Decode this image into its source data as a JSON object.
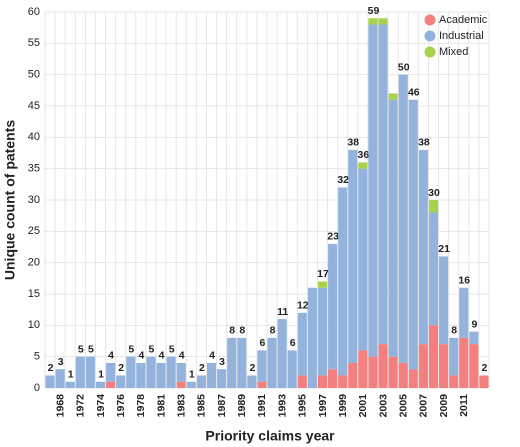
{
  "chart_data": {
    "type": "stacked_bar",
    "x_label": "Priority claims year",
    "y_label": "Unique count of patents",
    "categories": [
      null,
      "1968",
      null,
      "1972",
      null,
      "1974",
      null,
      "1976",
      null,
      "1978",
      null,
      "1981",
      null,
      "1983",
      null,
      "1985",
      null,
      "1987",
      null,
      "1989",
      null,
      "1991",
      null,
      "1993",
      null,
      "1995",
      null,
      "1997",
      null,
      "1999",
      null,
      "2001",
      null,
      "2003",
      null,
      "2005",
      null,
      "2007",
      null,
      "2009",
      null,
      "2011",
      null,
      null
    ],
    "series": [
      {
        "name": "Academic",
        "color": "#f47f7f",
        "values": [
          0,
          0,
          0,
          0,
          0,
          0,
          1,
          0,
          0,
          0,
          0,
          0,
          0,
          1,
          0,
          0,
          0,
          0,
          0,
          0,
          0,
          1,
          0,
          0,
          0,
          2,
          0,
          2,
          3,
          2,
          4,
          6,
          5,
          7,
          5,
          4,
          3,
          7,
          10,
          7,
          2,
          8,
          7,
          2
        ]
      },
      {
        "name": "Industrial",
        "color": "#93b3dc",
        "values": [
          2,
          3,
          1,
          5,
          5,
          1,
          3,
          2,
          5,
          4,
          5,
          4,
          5,
          3,
          1,
          2,
          4,
          3,
          8,
          8,
          2,
          5,
          8,
          11,
          6,
          10,
          16,
          14,
          20,
          30,
          34,
          29,
          53,
          51,
          41,
          46,
          43,
          31,
          18,
          14,
          6,
          8,
          2,
          0
        ]
      },
      {
        "name": "Mixed",
        "color": "#a8d24c",
        "values": [
          0,
          0,
          0,
          0,
          0,
          0,
          0,
          0,
          0,
          0,
          0,
          0,
          0,
          0,
          0,
          0,
          0,
          0,
          0,
          0,
          0,
          0,
          0,
          0,
          0,
          0,
          0,
          1,
          0,
          0,
          0,
          1,
          1,
          1,
          1,
          0,
          0,
          0,
          2,
          0,
          0,
          0,
          0,
          0
        ]
      }
    ],
    "totals": [
      2,
      3,
      1,
      5,
      5,
      1,
      4,
      2,
      5,
      4,
      5,
      4,
      5,
      4,
      1,
      2,
      4,
      3,
      8,
      8,
      2,
      6,
      8,
      11,
      6,
      12,
      null,
      17,
      23,
      32,
      38,
      36,
      59,
      null,
      null,
      50,
      46,
      38,
      30,
      21,
      8,
      16,
      9,
      2
    ],
    "ylim": [
      0,
      60
    ],
    "yticks": [
      0,
      5,
      10,
      15,
      20,
      25,
      30,
      35,
      40,
      45,
      50,
      55,
      60
    ],
    "grid": true,
    "legend": "top-right"
  }
}
